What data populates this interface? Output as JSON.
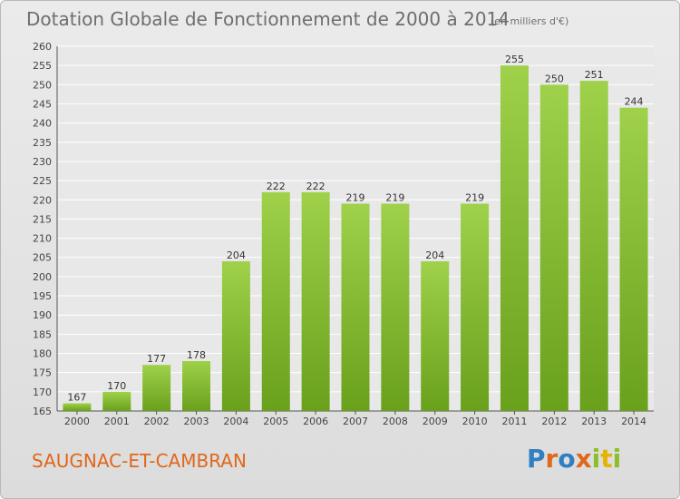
{
  "chart_data": {
    "type": "bar",
    "title": "Dotation Globale de Fonctionnement de 2000 à 2014",
    "subtitle": "(en milliers d'€)",
    "categories": [
      "2000",
      "2001",
      "2002",
      "2003",
      "2004",
      "2005",
      "2006",
      "2007",
      "2008",
      "2009",
      "2010",
      "2011",
      "2012",
      "2013",
      "2014"
    ],
    "values": [
      167,
      170,
      177,
      178,
      204,
      222,
      222,
      219,
      219,
      204,
      219,
      255,
      250,
      251,
      244
    ],
    "ylim": [
      165,
      260
    ],
    "ytick_step": 5,
    "grid": true,
    "bar_color": "#7fb22d"
  },
  "footer": {
    "place_name": "SAUGNAC-ET-CAMBRAN",
    "logo_text": "Proxiti"
  },
  "colors": {
    "place_name": "#e0671b",
    "bar_top": "#9fd14a",
    "bar_bottom": "#69a01c"
  }
}
